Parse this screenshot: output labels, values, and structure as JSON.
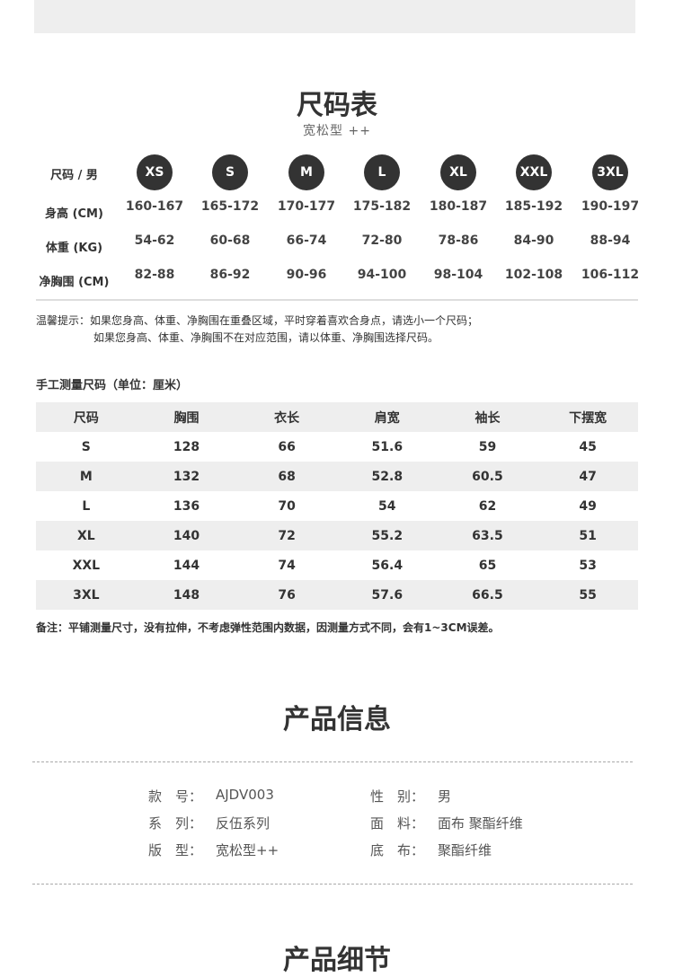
{
  "size_chart": {
    "title": "尺码表",
    "subtitle": "宽松型 ++",
    "header_label": "尺码 / 男",
    "sizes": [
      "XS",
      "S",
      "M",
      "L",
      "XL",
      "XXL",
      "3XL"
    ],
    "rows": [
      {
        "label": "身高 (CM)",
        "values": [
          "160-167",
          "165-172",
          "170-177",
          "175-182",
          "180-187",
          "185-192",
          "190-197"
        ]
      },
      {
        "label": "体重 (KG)",
        "values": [
          "54-62",
          "60-68",
          "66-74",
          "72-80",
          "78-86",
          "84-90",
          "88-94"
        ]
      },
      {
        "label": "净胸围 (CM)",
        "values": [
          "82-88",
          "86-92",
          "90-96",
          "94-100",
          "98-104",
          "102-108",
          "106-112"
        ]
      }
    ],
    "tip_line1": "温馨提示：如果您身高、体重、净胸围在重叠区域，平时穿着喜欢合身点，请选小一个尺码；",
    "tip_line2": "如果您身高、体重、净胸围不在对应范围，请以体重、净胸围选择尺码。"
  },
  "measure": {
    "title": "手工测量尺码（单位：厘米）",
    "headers": [
      "尺码",
      "胸围",
      "衣长",
      "肩宽",
      "袖长",
      "下摆宽"
    ],
    "rows": [
      [
        "S",
        "128",
        "66",
        "51.6",
        "59",
        "45"
      ],
      [
        "M",
        "132",
        "68",
        "52.8",
        "60.5",
        "47"
      ],
      [
        "L",
        "136",
        "70",
        "54",
        "62",
        "49"
      ],
      [
        "XL",
        "140",
        "72",
        "55.2",
        "63.5",
        "51"
      ],
      [
        "XXL",
        "144",
        "74",
        "56.4",
        "65",
        "53"
      ],
      [
        "3XL",
        "148",
        "76",
        "57.6",
        "66.5",
        "55"
      ]
    ],
    "note": "备注：平铺测量尺寸，没有拉伸，不考虑弹性范围内数据，因测量方式不同，会有1~3CM误差。"
  },
  "product_info": {
    "title": "产品信息",
    "items": [
      {
        "label": "款　号：",
        "value": "AJDV003"
      },
      {
        "label": "性　别：",
        "value": "男"
      },
      {
        "label": "系　列：",
        "value": "反伍系列"
      },
      {
        "label": "面　料：",
        "value": "面布 聚酯纤维"
      },
      {
        "label": "版　型：",
        "value": "宽松型++"
      },
      {
        "label": "底　布：",
        "value": "聚酯纤维"
      }
    ]
  },
  "product_detail": {
    "title": "产品细节"
  },
  "colors": {
    "circle": "#333333",
    "stripe": "#eeeeee"
  }
}
